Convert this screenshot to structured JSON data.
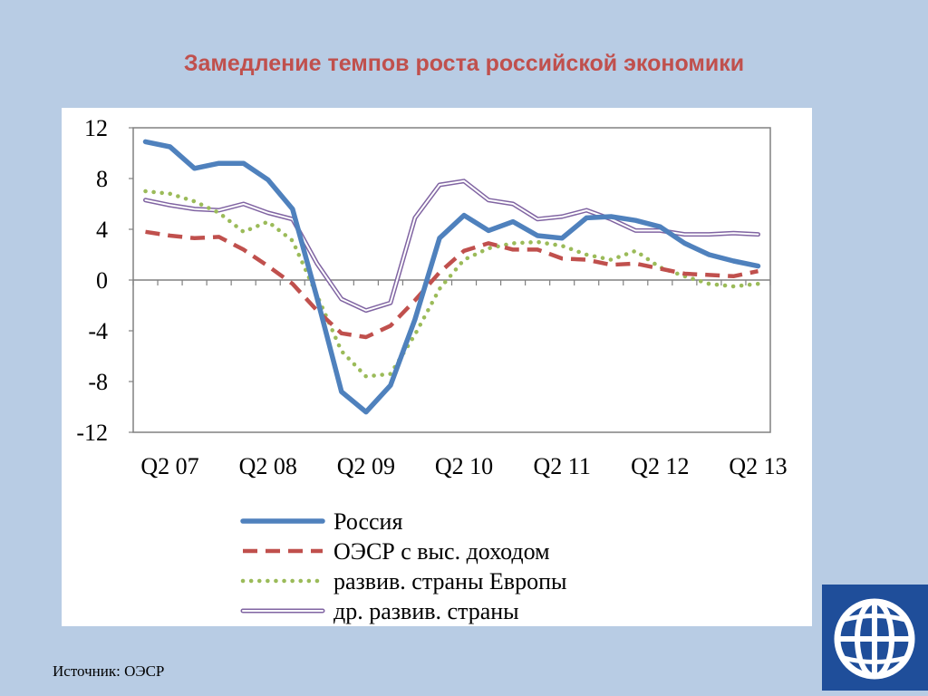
{
  "title": "Замедление темпов роста российской экономики",
  "source_note": "Источник: ОЭСР",
  "colors": {
    "russia": "#4f81bd",
    "oecd_high_income": "#c0504d",
    "emerging_europe": "#9bbb59",
    "other_emerging": "#8064a2",
    "title": "#c0504d",
    "background": "#b8cce4",
    "logo": "#1f4e9a"
  },
  "logo_icon": "globe-icon",
  "chart_data": {
    "type": "line",
    "title": "",
    "xlabel": "",
    "ylabel": "",
    "ylim": [
      -12,
      12
    ],
    "yticks": [
      "12",
      "8",
      "4",
      "0",
      "-4",
      "-8",
      "-12"
    ],
    "x_tick_labels": [
      "Q2 07",
      "Q2 08",
      "Q2 09",
      "Q2 10",
      "Q2 11",
      "Q2 12",
      "Q2 13"
    ],
    "x": [
      "Q1 07",
      "Q2 07",
      "Q3 07",
      "Q4 07",
      "Q1 08",
      "Q2 08",
      "Q3 08",
      "Q4 08",
      "Q1 09",
      "Q2 09",
      "Q3 09",
      "Q4 09",
      "Q1 10",
      "Q2 10",
      "Q3 10",
      "Q4 10",
      "Q1 11",
      "Q2 11",
      "Q3 11",
      "Q4 11",
      "Q1 12",
      "Q2 12",
      "Q3 12",
      "Q4 12",
      "Q1 13",
      "Q2 13"
    ],
    "grid": false,
    "legend_position": "bottom",
    "series": [
      {
        "name": "Россия",
        "style": "solid-thick",
        "values": [
          10.9,
          10.5,
          8.8,
          9.2,
          9.2,
          7.9,
          5.6,
          -1.4,
          -8.8,
          -10.4,
          -8.3,
          -3.1,
          3.3,
          5.1,
          3.9,
          4.6,
          3.5,
          3.3,
          4.9,
          5.0,
          4.7,
          4.2,
          2.9,
          2.0,
          1.5,
          1.1
        ]
      },
      {
        "name": "ОЭСР с выс. доходом",
        "style": "dashed",
        "values": [
          3.8,
          3.5,
          3.3,
          3.4,
          2.4,
          1.1,
          -0.3,
          -2.4,
          -4.2,
          -4.5,
          -3.6,
          -1.6,
          0.6,
          2.3,
          2.9,
          2.4,
          2.4,
          1.7,
          1.6,
          1.2,
          1.3,
          0.9,
          0.5,
          0.4,
          0.3,
          0.7
        ]
      },
      {
        "name": "развив. страны Европы",
        "style": "dotted",
        "values": [
          7.0,
          6.8,
          6.2,
          5.3,
          3.8,
          4.6,
          3.1,
          -1.2,
          -5.6,
          -7.6,
          -7.4,
          -4.3,
          -0.7,
          1.6,
          2.5,
          2.9,
          3.0,
          2.7,
          2.0,
          1.6,
          2.3,
          1.0,
          0.3,
          -0.3,
          -0.5,
          -0.3
        ]
      },
      {
        "name": "др. развив. страны",
        "style": "double",
        "values": [
          6.3,
          5.9,
          5.6,
          5.5,
          6.0,
          5.3,
          4.8,
          1.3,
          -1.5,
          -2.4,
          -1.8,
          4.9,
          7.5,
          7.8,
          6.3,
          6.0,
          4.8,
          5.0,
          5.5,
          4.8,
          3.9,
          3.9,
          3.6,
          3.6,
          3.7,
          3.6
        ]
      }
    ]
  }
}
